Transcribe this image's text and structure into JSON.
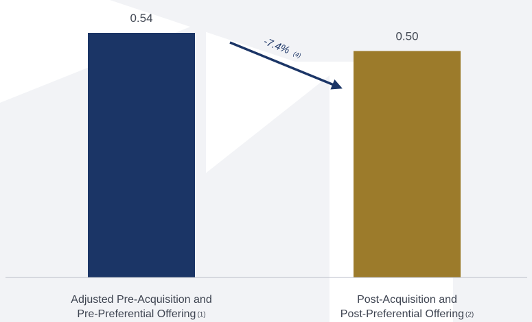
{
  "chart_data": {
    "type": "bar",
    "categories": [
      {
        "line1": "Adjusted Pre-Acquisition and",
        "line2": "Pre-Preferential Offering",
        "footnote": "(1)"
      },
      {
        "line1": "Post-Acquisition and",
        "line2": "Post-Preferential Offering",
        "footnote": "(2)"
      }
    ],
    "values": [
      0.54,
      0.5
    ],
    "data_labels": [
      "0.54",
      "0.50"
    ],
    "colors": [
      "#1b3566",
      "#9c7b2b"
    ],
    "annotation": {
      "text": "-7.4%",
      "footnote": "(4)",
      "color": "#1b3566"
    },
    "ylim": [
      0,
      0.54
    ],
    "grid": false,
    "legend": "none"
  }
}
